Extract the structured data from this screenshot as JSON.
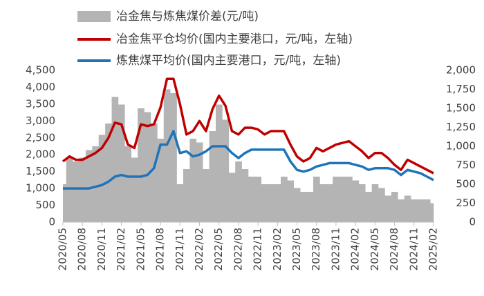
{
  "chart_data": {
    "type": "combo",
    "categories": [
      "2020/05",
      null,
      null,
      "2020/08",
      null,
      null,
      "2020/11",
      null,
      null,
      "2021/02",
      null,
      null,
      "2021/05",
      null,
      null,
      "2021/08",
      null,
      null,
      "2021/11",
      null,
      null,
      "2022/02",
      null,
      null,
      "2022/05",
      null,
      null,
      "2022/08",
      null,
      null,
      "2022/11",
      null,
      null,
      "2023/02",
      null,
      null,
      "2023/05",
      null,
      null,
      "2023/08",
      null,
      null,
      "2023/11",
      null,
      null,
      "2024/02",
      null,
      null,
      "2024/05",
      null,
      null,
      "2024/08",
      null,
      null,
      "2024/11",
      null,
      null,
      "2025/02"
    ],
    "series": [
      {
        "name": "冶金焦与炼焦煤价差(元/吨)",
        "type": "bar",
        "axis": "y2",
        "color": "#b4b4b4",
        "values": [
          500,
          850,
          800,
          850,
          950,
          1000,
          1150,
          1300,
          1650,
          1550,
          1000,
          850,
          1500,
          1450,
          1300,
          1100,
          1750,
          1700,
          500,
          700,
          1100,
          1050,
          700,
          1200,
          1550,
          1350,
          650,
          800,
          700,
          600,
          600,
          500,
          500,
          500,
          600,
          550,
          450,
          400,
          400,
          600,
          500,
          500,
          600,
          600,
          600,
          550,
          500,
          400,
          500,
          450,
          350,
          400,
          300,
          350,
          300,
          300,
          300,
          250
        ]
      },
      {
        "name": "冶金焦平仓均价(国内主要港口，元/吨，左轴)",
        "type": "line",
        "color": "#c00000",
        "values": [
          1800,
          1950,
          1850,
          1850,
          1950,
          2050,
          2200,
          2500,
          2950,
          2900,
          2300,
          2200,
          2900,
          2850,
          2900,
          3400,
          4250,
          4250,
          3500,
          2600,
          2700,
          3000,
          2700,
          3350,
          3750,
          3450,
          2700,
          2600,
          2800,
          2800,
          2750,
          2600,
          2700,
          2700,
          2700,
          2300,
          1950,
          1800,
          1900,
          2200,
          2100,
          2200,
          2300,
          2350,
          2400,
          2250,
          2100,
          1900,
          2050,
          2050,
          1900,
          1700,
          1550,
          1850,
          1750,
          1650,
          1550,
          1450
        ]
      },
      {
        "name": "炼焦煤平均价(国内主要港口，元/吨，左轴)",
        "type": "line",
        "color": "#1f74b9",
        "values": [
          1000,
          1000,
          1000,
          1000,
          1000,
          1050,
          1100,
          1200,
          1350,
          1400,
          1350,
          1350,
          1350,
          1400,
          1600,
          2300,
          2300,
          2700,
          2050,
          2100,
          1950,
          2000,
          2100,
          2250,
          2250,
          2250,
          2050,
          1900,
          2050,
          2150,
          2150,
          2150,
          2150,
          2150,
          2150,
          1800,
          1550,
          1500,
          1550,
          1650,
          1700,
          1750,
          1750,
          1750,
          1750,
          1700,
          1650,
          1550,
          1600,
          1600,
          1600,
          1550,
          1400,
          1550,
          1500,
          1450,
          1350,
          1250
        ]
      }
    ],
    "ylim": [
      0,
      4500
    ],
    "yticks": [
      0,
      500,
      {
        "value": 1000,
        "label": "1,000"
      },
      {
        "value": 1500,
        "label": "1,500"
      },
      {
        "value": 2000,
        "label": "2,000"
      },
      {
        "value": 2500,
        "label": "2,500"
      },
      {
        "value": 3000,
        "label": "3,000"
      },
      {
        "value": 3500,
        "label": "3,500"
      },
      {
        "value": 4000,
        "label": "4,000"
      },
      {
        "value": 4500,
        "label": "4,500"
      }
    ],
    "y2lim": [
      0,
      2000
    ],
    "y2ticks": [
      0,
      250,
      500,
      750,
      {
        "value": 1000,
        "label": "1,000"
      },
      {
        "value": 1250,
        "label": "1,250"
      },
      {
        "value": 1500,
        "label": "1,500"
      },
      {
        "value": 1750,
        "label": "1,750"
      },
      {
        "value": 2000,
        "label": "2,000"
      }
    ],
    "legend": "top-left"
  }
}
